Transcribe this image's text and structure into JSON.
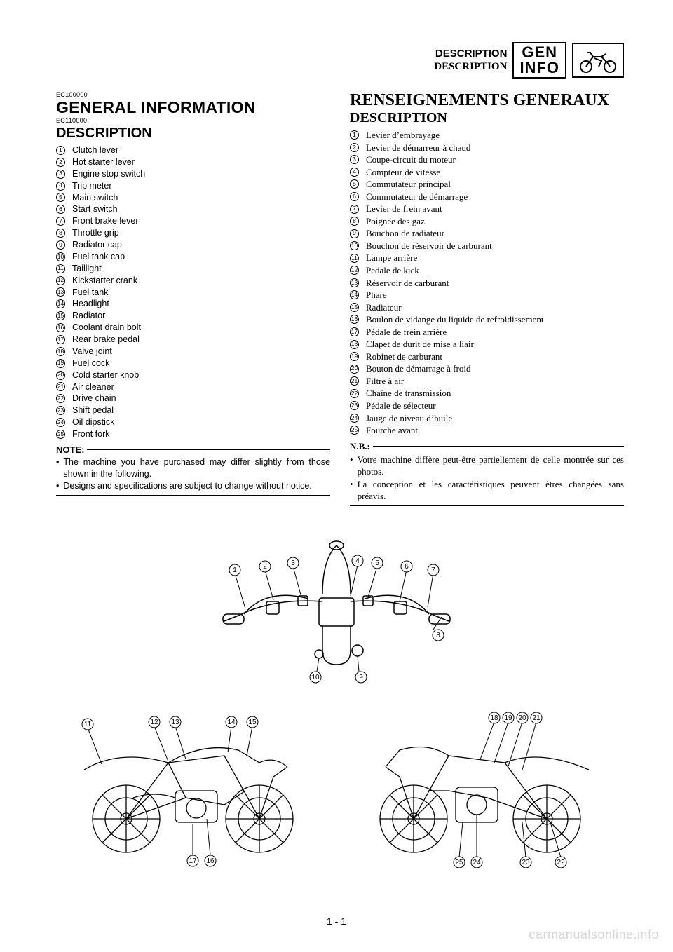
{
  "header": {
    "title_en": "DESCRIPTION",
    "title_fr": "DESCRIPTION",
    "tab_line1": "GEN",
    "tab_line2": "INFO"
  },
  "left": {
    "code1": "EC100000",
    "h1": "GENERAL INFORMATION",
    "code2": "EC110000",
    "h2": "DESCRIPTION",
    "items": [
      "Clutch lever",
      "Hot starter lever",
      "Engine stop switch",
      "Trip meter",
      "Main switch",
      "Start switch",
      "Front brake lever",
      "Throttle grip",
      "Radiator cap",
      "Fuel tank cap",
      "Taillight",
      "Kickstarter crank",
      "Fuel tank",
      "Headlight",
      "Radiator",
      "Coolant drain bolt",
      "Rear brake pedal",
      "Valve joint",
      "Fuel cock",
      "Cold starter knob",
      "Air cleaner",
      "Drive chain",
      "Shift pedal",
      "Oil dipstick",
      "Front fork"
    ],
    "note_label": "NOTE:",
    "notes": [
      "The machine you have purchased may differ slightly from those shown in the following.",
      "Designs and specifications are subject to change without notice."
    ]
  },
  "right": {
    "h1": "RENSEIGNEMENTS GENERAUX",
    "h2": "DESCRIPTION",
    "items": [
      "Levier d’embrayage",
      "Levier de démarreur à chaud",
      "Coupe-circuit du moteur",
      "Compteur de vitesse",
      "Commutateur principal",
      "Commutateur de démarrage",
      "Levier de frein avant",
      "Poignée des gaz",
      "Bouchon de radiateur",
      "Bouchon de réservoir de carburant",
      "Lampe arrière",
      "Pedale de kick",
      "Réservoir de carburant",
      "Phare",
      "Radiateur",
      "Boulon de vidange du liquide de refroidissement",
      "Pédale de frein arrière",
      "Clapet de durit de mise a liair",
      "Robinet de carburant",
      "Bouton de démarrage à froid",
      "Filtre à air",
      "Chaîne de transmission",
      "Pédale de sélecteur",
      "Jauge de niveau d’huile",
      "Fourche avant"
    ],
    "note_label": "N.B.:",
    "notes": [
      "Votre machine diffère peut-être partiellement de celle montrée sur ces photos.",
      "La conception et les caractéristiques peuvent êtres changées sans préavis."
    ]
  },
  "page_num": "1 - 1",
  "watermark": "carmanualsonline.info",
  "style": {
    "colors": {
      "text": "#000000",
      "background": "#ffffff",
      "watermark": "#d6d6d6"
    },
    "fonts": {
      "sans": "Arial, Helvetica, sans-serif",
      "serif": "Times New Roman, Times, serif"
    }
  }
}
